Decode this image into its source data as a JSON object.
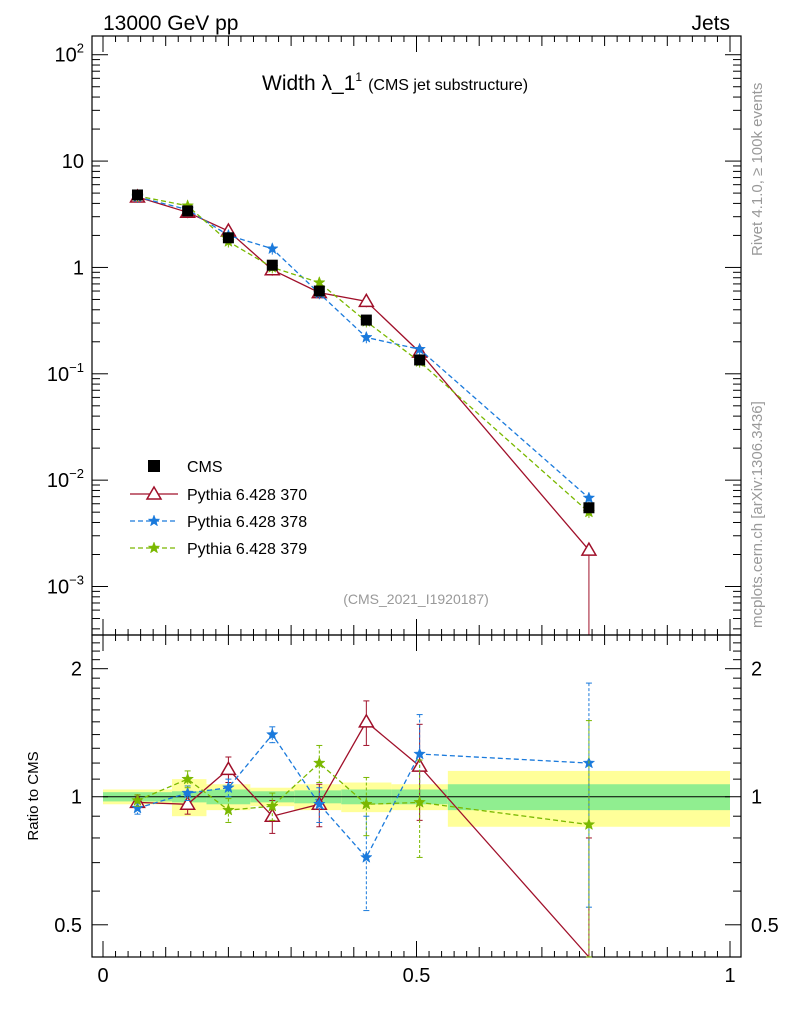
{
  "header": {
    "left": "13000 GeV pp",
    "right": "Jets",
    "side_right": "Rivet 4.1.0, ≥ 100k events",
    "side_right2": "mcplots.cern.ch [arXiv:1306.3436]"
  },
  "chart_data": {
    "type": "line",
    "title_main": "Width λ_1",
    "title_sup": "1",
    "title_sub": "(CMS jet substructure)",
    "watermark": "(CMS_2021_I1920187)",
    "ratio_ylabel": "Ratio to CMS",
    "xlim": [
      0,
      1
    ],
    "ylim": [
      0.00035,
      150
    ],
    "ratio_ylim": [
      0.42,
      2.4
    ],
    "y_ticks": [
      {
        "value": 100,
        "base": "10",
        "exp": "2"
      },
      {
        "value": 10,
        "base": "10",
        "exp": ""
      },
      {
        "value": 1,
        "base": "1",
        "exp": ""
      },
      {
        "value": 0.1,
        "base": "10",
        "exp": "−1"
      },
      {
        "value": 0.01,
        "base": "10",
        "exp": "−2"
      },
      {
        "value": 0.001,
        "base": "10",
        "exp": "−3"
      }
    ],
    "x_ticks": [
      {
        "value": 0,
        "label": "0"
      },
      {
        "value": 0.5,
        "label": "0.5"
      },
      {
        "value": 1,
        "label": "1"
      }
    ],
    "ratio_ticks": [
      {
        "value": 2,
        "label": "2"
      },
      {
        "value": 1,
        "label": "1"
      },
      {
        "value": 0.5,
        "label": "0.5"
      }
    ],
    "x": [
      0.055,
      0.135,
      0.2,
      0.27,
      0.345,
      0.42,
      0.505,
      0.775
    ],
    "bins": [
      [
        0.0,
        0.11
      ],
      [
        0.11,
        0.165
      ],
      [
        0.165,
        0.235
      ],
      [
        0.235,
        0.305
      ],
      [
        0.305,
        0.38
      ],
      [
        0.38,
        0.46
      ],
      [
        0.46,
        0.55
      ],
      [
        0.55,
        1.0
      ]
    ],
    "band_stat": [
      0.025,
      0.03,
      0.04,
      0.03,
      0.035,
      0.04,
      0.04,
      0.07
    ],
    "band_tot": [
      0.04,
      0.1,
      0.07,
      0.05,
      0.07,
      0.08,
      0.07,
      0.15
    ],
    "data": {
      "name": "CMS",
      "values": [
        4.8,
        3.4,
        1.9,
        1.05,
        0.6,
        0.32,
        0.135,
        0.0055
      ]
    },
    "series": [
      {
        "name": "Pythia 6.428 370",
        "color": "#a0102a",
        "marker": "triangle",
        "dash": "",
        "values": [
          4.6,
          3.3,
          2.2,
          0.95,
          0.58,
          0.48,
          0.16,
          0.0022
        ],
        "ratio": [
          0.97,
          0.96,
          1.16,
          0.9,
          0.96,
          1.5,
          1.18,
          0.4
        ],
        "ratio_err": [
          0.04,
          0.05,
          0.08,
          0.08,
          0.11,
          0.18,
          0.3,
          0.4
        ]
      },
      {
        "name": "Pythia 6.428 378",
        "color": "#1a7adc",
        "marker": "star",
        "dash": "5,3",
        "values": [
          4.6,
          3.5,
          2.0,
          1.5,
          0.57,
          0.22,
          0.17,
          0.0068
        ],
        "ratio": [
          0.94,
          1.02,
          1.05,
          1.4,
          0.96,
          0.72,
          1.26,
          1.2
        ],
        "ratio_err": [
          0.03,
          0.04,
          0.05,
          0.06,
          0.09,
          0.18,
          0.3,
          0.65
        ]
      },
      {
        "name": "Pythia 6.428 379",
        "color": "#7ab800",
        "marker": "star",
        "dash": "5,3",
        "values": [
          4.7,
          3.8,
          1.75,
          1.0,
          0.72,
          0.31,
          0.13,
          0.005
        ],
        "ratio": [
          0.98,
          1.1,
          0.93,
          0.95,
          1.2,
          0.96,
          0.97,
          0.86
        ],
        "ratio_err": [
          0.03,
          0.05,
          0.06,
          0.07,
          0.12,
          0.15,
          0.25,
          0.65
        ]
      }
    ]
  }
}
